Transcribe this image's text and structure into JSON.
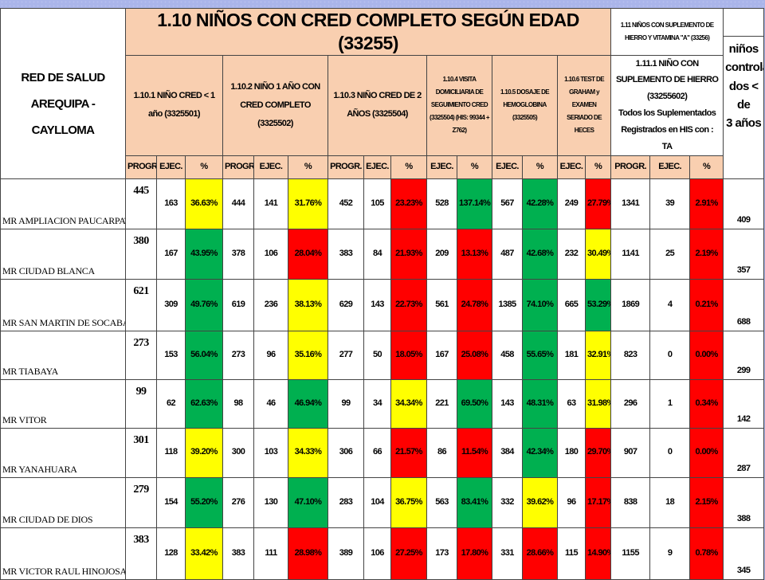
{
  "header": {
    "left": [
      "RED DE SALUD AREQUIPA -",
      "CAYLLOMA"
    ],
    "title": "1.10 NIÑOS CON CRED COMPLETO SEGÚN EDAD (33255)",
    "section_111": "1.11 NIÑOS CON SUPLEMENTO DE HIERRO Y VITAMINA \"A\" (33256)",
    "groups": [
      "1.10.1 NIÑO CRED < 1 año (3325501)",
      "1.10.2 NIÑO 1 AÑO CON CRED COMPLETO (3325502)",
      "1.10.3 NIÑO CRED DE 2 AÑOS (3325504)",
      "1.10.4 VISITA DOMICILIARIA DE SEGUIMIENTO CRED (3325504) (HIS: 99344 + Z762)",
      "1.10.5 DOSAJE DE HEMOGLOBINA (3325505)",
      "1.10.6 TEST DE GRAHAM y EXAMEN SERIADO DE HECES"
    ],
    "group_1111": [
      "1.11.1 NIÑO CON SUPLEMENTO DE HIERRO (33255602)",
      "Todos los Suplementados Registrados en HIS con :",
      "TA"
    ],
    "last": [
      "niños",
      "controla",
      "dos < de",
      "3 años"
    ],
    "columns": [
      "PROGR.",
      "EJEC.",
      "%",
      "PROGR.",
      "EJEC.",
      "%",
      "PROGR.",
      "EJEC.",
      "%",
      "EJEC.",
      "%",
      "EJEC.",
      "%",
      "EJEC.",
      "%",
      "PROGR.",
      "EJEC.",
      "%"
    ]
  },
  "table": {
    "rows": [
      {
        "name": "MR AMPLIACION PAUCARPATA",
        "cells": [
          "445",
          "163",
          {
            "text": "36.63%",
            "color": "#ffff00"
          },
          "444",
          "141",
          {
            "text": "31.76%",
            "color": "#ffff00"
          },
          "452",
          "105",
          {
            "text": "23.23%",
            "color": "#ff0000"
          },
          "528",
          {
            "text": "137.14%",
            "color": "#00b050"
          },
          "567",
          {
            "text": "42.28%",
            "color": "#00b050"
          },
          "249",
          {
            "text": "27.79%",
            "color": "#ff0000"
          },
          "1341",
          "39",
          {
            "text": "2.91%",
            "color": "#ff0000"
          },
          "409"
        ]
      },
      {
        "name": "MR CIUDAD BLANCA",
        "cells": [
          "380",
          "167",
          {
            "text": "43.95%",
            "color": "#00b050"
          },
          "378",
          "106",
          {
            "text": "28.04%",
            "color": "#ff0000"
          },
          "383",
          "84",
          {
            "text": "21.93%",
            "color": "#ff0000"
          },
          "209",
          {
            "text": "13.13%",
            "color": "#ff0000"
          },
          "487",
          {
            "text": "42.68%",
            "color": "#00b050"
          },
          "232",
          {
            "text": "30.49%",
            "color": "#ffff00"
          },
          "1141",
          "25",
          {
            "text": "2.19%",
            "color": "#ff0000"
          },
          "357"
        ]
      },
      {
        "name": "MR SAN MARTIN DE SOCABAYA",
        "cells": [
          "621",
          "309",
          {
            "text": "49.76%",
            "color": "#00b050"
          },
          "619",
          "236",
          {
            "text": "38.13%",
            "color": "#ffff00"
          },
          "629",
          "143",
          {
            "text": "22.73%",
            "color": "#ff0000"
          },
          "561",
          {
            "text": "24.78%",
            "color": "#ff0000"
          },
          "1385",
          {
            "text": "74.10%",
            "color": "#00b050"
          },
          "665",
          {
            "text": "53.29%",
            "color": "#00b050"
          },
          "1869",
          "4",
          {
            "text": "0.21%",
            "color": "#ff0000"
          },
          "688"
        ]
      },
      {
        "name": "MR TIABAYA",
        "cells": [
          "273",
          "153",
          {
            "text": "56.04%",
            "color": "#00b050"
          },
          "273",
          "96",
          {
            "text": "35.16%",
            "color": "#ffff00"
          },
          "277",
          "50",
          {
            "text": "18.05%",
            "color": "#ff0000"
          },
          "167",
          {
            "text": "25.08%",
            "color": "#ff0000"
          },
          "458",
          {
            "text": "55.65%",
            "color": "#00b050"
          },
          "181",
          {
            "text": "32.91%",
            "color": "#ffff00"
          },
          "823",
          "0",
          {
            "text": "0.00%",
            "color": "#ff0000"
          },
          "299"
        ]
      },
      {
        "name": "MR VITOR",
        "cells": [
          "99",
          "62",
          {
            "text": "62.63%",
            "color": "#00b050"
          },
          "98",
          "46",
          {
            "text": "46.94%",
            "color": "#00b050"
          },
          "99",
          "34",
          {
            "text": "34.34%",
            "color": "#ffff00"
          },
          "221",
          {
            "text": "69.50%",
            "color": "#00b050"
          },
          "143",
          {
            "text": "48.31%",
            "color": "#00b050"
          },
          "63",
          {
            "text": "31.98%",
            "color": "#ffff00"
          },
          "296",
          "1",
          {
            "text": "0.34%",
            "color": "#ff0000"
          },
          "142"
        ]
      },
      {
        "name": "MR YANAHUARA",
        "cells": [
          "301",
          "118",
          {
            "text": "39.20%",
            "color": "#ffff00"
          },
          "300",
          "103",
          {
            "text": "34.33%",
            "color": "#ffff00"
          },
          "306",
          "66",
          {
            "text": "21.57%",
            "color": "#ff0000"
          },
          "86",
          {
            "text": "11.54%",
            "color": "#ff0000"
          },
          "384",
          {
            "text": "42.34%",
            "color": "#00b050"
          },
          "180",
          {
            "text": "29.70%",
            "color": "#ff0000"
          },
          "907",
          "0",
          {
            "text": "0.00%",
            "color": "#ff0000"
          },
          "287"
        ]
      },
      {
        "name": "MR CIUDAD DE DIOS",
        "cells": [
          "279",
          "154",
          {
            "text": "55.20%",
            "color": "#00b050"
          },
          "276",
          "130",
          {
            "text": "47.10%",
            "color": "#00b050"
          },
          "283",
          "104",
          {
            "text": "36.75%",
            "color": "#ffff00"
          },
          "563",
          {
            "text": "83.41%",
            "color": "#00b050"
          },
          "332",
          {
            "text": "39.62%",
            "color": "#ffff00"
          },
          "96",
          {
            "text": "17.17%",
            "color": "#ff0000"
          },
          "838",
          "18",
          {
            "text": "2.15%",
            "color": "#ff0000"
          },
          "388"
        ]
      },
      {
        "name": "MR VICTOR RAUL HINOJOSA",
        "cells": [
          "383",
          "128",
          {
            "text": "33.42%",
            "color": "#ffff00"
          },
          "383",
          "111",
          {
            "text": "28.98%",
            "color": "#ff0000"
          },
          "389",
          "106",
          {
            "text": "27.25%",
            "color": "#ff0000"
          },
          "173",
          {
            "text": "17.80%",
            "color": "#ff0000"
          },
          "331",
          {
            "text": "28.66%",
            "color": "#ff0000"
          },
          "115",
          {
            "text": "14.90%",
            "color": "#ff0000"
          },
          "1155",
          "9",
          {
            "text": "0.78%",
            "color": "#ff0000"
          },
          "345"
        ]
      }
    ]
  }
}
